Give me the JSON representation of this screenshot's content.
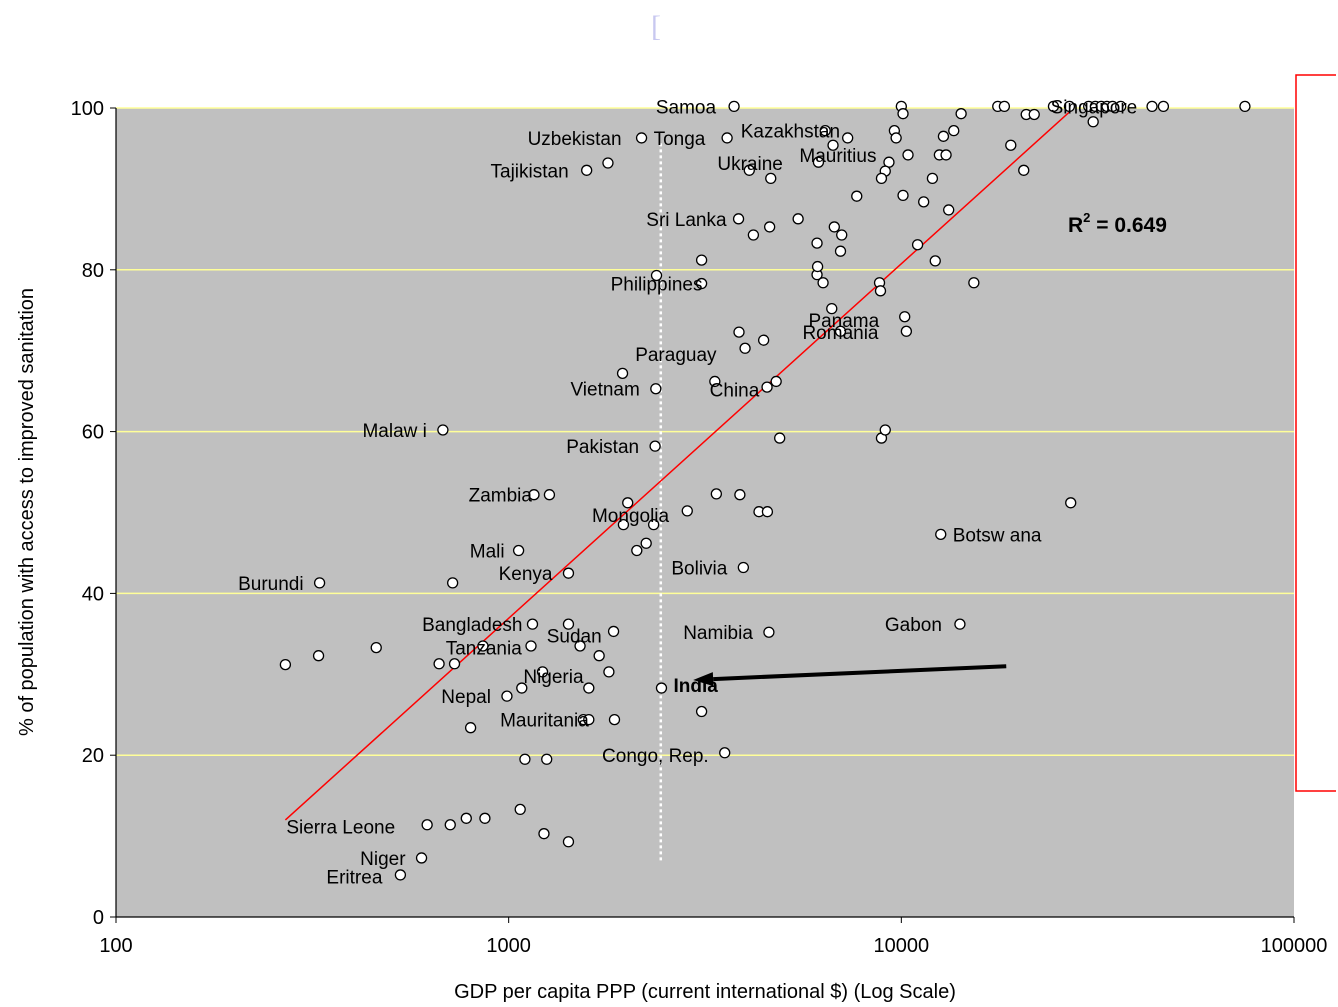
{
  "page": {
    "top_marker": "["
  },
  "chart_data": {
    "type": "scatter",
    "xscale": "log",
    "xlim": [
      100,
      100000
    ],
    "ylim": [
      0,
      100
    ],
    "xticks": [
      100,
      1000,
      10000,
      100000
    ],
    "xtick_labels": [
      "100",
      "1000",
      "10000",
      "100000"
    ],
    "yticks": [
      0,
      20,
      40,
      60,
      80,
      100
    ],
    "ytick_labels": [
      "0",
      "20",
      "40",
      "60",
      "80",
      "100"
    ],
    "xlabel": "GDP per capita PPP (current international $) (Log Scale)",
    "ylabel": "% of population with access to improved sanitation",
    "r2_label": "R",
    "r2_sup": "2",
    "r2_value": " = 0.649",
    "grid": "horizontal",
    "colors": {
      "plot_bg": "#c0c0c0",
      "gridline": "#ffff99",
      "trend": "#ff0000",
      "marker_fill": "#ffffff",
      "marker_stroke": "#000000",
      "annotation_box": "#ff0000",
      "arrow": "#000000",
      "reference_line": "#ffffff"
    },
    "reference_x": 2440,
    "reference_y_range": [
      7,
      96
    ],
    "trendline": {
      "x1": 270,
      "y1": 12,
      "x2": 27500,
      "y2": 100
    },
    "arrow": {
      "from": [
        18500,
        31
      ],
      "to": [
        2950,
        29.3
      ],
      "target_label": "India"
    },
    "points": [
      [
        270,
        31.2
      ],
      [
        328,
        32.3
      ],
      [
        460,
        33.3
      ],
      [
        665,
        31.3
      ],
      [
        728,
        31.3
      ],
      [
        860,
        33.5
      ],
      [
        330,
        41.3
      ],
      [
        720,
        41.3
      ],
      [
        1060,
        45.3
      ],
      [
        1420,
        42.5
      ],
      [
        680,
        60.2
      ],
      [
        1950,
        67.2
      ],
      [
        2370,
        65.3
      ],
      [
        3350,
        66.2
      ],
      [
        4550,
        65.5
      ],
      [
        4800,
        66.2
      ],
      [
        2360,
        58.2
      ],
      [
        4900,
        59.2
      ],
      [
        8900,
        59.2
      ],
      [
        9100,
        60.2
      ],
      [
        1160,
        52.2
      ],
      [
        1270,
        52.2
      ],
      [
        2010,
        51.2
      ],
      [
        2850,
        50.2
      ],
      [
        1960,
        48.5
      ],
      [
        2340,
        48.5
      ],
      [
        2120,
        45.3
      ],
      [
        2240,
        46.2
      ],
      [
        3380,
        52.3
      ],
      [
        3880,
        52.2
      ],
      [
        4340,
        50.1
      ],
      [
        4560,
        50.1
      ],
      [
        3960,
        43.2
      ],
      [
        12600,
        47.3
      ],
      [
        27000,
        51.2
      ],
      [
        1150,
        36.2
      ],
      [
        1420,
        36.2
      ],
      [
        1850,
        35.3
      ],
      [
        1520,
        33.5
      ],
      [
        1140,
        33.5
      ],
      [
        1220,
        30.3
      ],
      [
        1700,
        32.3
      ],
      [
        1800,
        30.3
      ],
      [
        1600,
        28.3
      ],
      [
        1080,
        28.3
      ],
      [
        990,
        27.3
      ],
      [
        800,
        23.4
      ],
      [
        1550,
        24.4
      ],
      [
        1600,
        24.4
      ],
      [
        1860,
        24.4
      ],
      [
        2450,
        28.3
      ],
      [
        3100,
        25.4
      ],
      [
        4600,
        35.2
      ],
      [
        14100,
        36.2
      ],
      [
        1100,
        19.5
      ],
      [
        1250,
        19.5
      ],
      [
        3550,
        20.3
      ],
      [
        1070,
        13.3
      ],
      [
        1230,
        10.3
      ],
      [
        1420,
        9.3
      ],
      [
        620,
        11.4
      ],
      [
        710,
        11.4
      ],
      [
        780,
        12.2
      ],
      [
        870,
        12.2
      ],
      [
        600,
        7.3
      ],
      [
        530,
        5.2
      ],
      [
        3750,
        100.2
      ],
      [
        2180,
        96.3
      ],
      [
        1790,
        93.2
      ],
      [
        1580,
        92.3
      ],
      [
        3600,
        96.3
      ],
      [
        6400,
        97.2
      ],
      [
        6700,
        95.4
      ],
      [
        6150,
        93.3
      ],
      [
        7300,
        96.3
      ],
      [
        9600,
        97.2
      ],
      [
        9700,
        96.3
      ],
      [
        4100,
        92.3
      ],
      [
        4650,
        91.3
      ],
      [
        9300,
        93.3
      ],
      [
        9100,
        92.2
      ],
      [
        8900,
        91.3
      ],
      [
        10400,
        94.2
      ],
      [
        10100,
        89.2
      ],
      [
        12500,
        94.2
      ],
      [
        13000,
        94.2
      ],
      [
        12800,
        96.5
      ],
      [
        13600,
        97.2
      ],
      [
        14200,
        99.3
      ],
      [
        12000,
        91.3
      ],
      [
        11400,
        88.4
      ],
      [
        13200,
        87.4
      ],
      [
        19000,
        95.4
      ],
      [
        20500,
        92.3
      ],
      [
        7700,
        89.1
      ],
      [
        10000,
        100.2
      ],
      [
        10100,
        99.3
      ],
      [
        17600,
        100.2
      ],
      [
        18300,
        100.2
      ],
      [
        20800,
        99.2
      ],
      [
        21800,
        99.2
      ],
      [
        24400,
        100.2
      ],
      [
        26800,
        100.2
      ],
      [
        30000,
        100.2
      ],
      [
        31200,
        100.2
      ],
      [
        32300,
        100.2
      ],
      [
        33400,
        100.2
      ],
      [
        34500,
        100.2
      ],
      [
        36200,
        100.2
      ],
      [
        43500,
        100.2
      ],
      [
        46500,
        100.2
      ],
      [
        75000,
        100.2
      ],
      [
        30800,
        98.3
      ],
      [
        3850,
        86.3
      ],
      [
        4200,
        84.3
      ],
      [
        4620,
        85.3
      ],
      [
        5460,
        86.3
      ],
      [
        6750,
        85.3
      ],
      [
        7050,
        84.3
      ],
      [
        6100,
        83.3
      ],
      [
        7000,
        82.3
      ],
      [
        6100,
        79.4
      ],
      [
        6120,
        80.4
      ],
      [
        6320,
        78.4
      ],
      [
        8800,
        78.4
      ],
      [
        8850,
        77.4
      ],
      [
        11000,
        83.1
      ],
      [
        12200,
        81.1
      ],
      [
        15300,
        78.4
      ],
      [
        3100,
        81.2
      ],
      [
        3100,
        78.3
      ],
      [
        2380,
        79.3
      ],
      [
        3860,
        72.3
      ],
      [
        4460,
        71.3
      ],
      [
        4000,
        70.3
      ],
      [
        6650,
        75.2
      ],
      [
        10200,
        74.2
      ],
      [
        10300,
        72.4
      ],
      [
        7000,
        72.4
      ]
    ],
    "labels": [
      {
        "text": "Samoa",
        "x": 3750,
        "y": 100.2,
        "anchor": "end",
        "dx": -18
      },
      {
        "text": "Uzbekistan",
        "x": 2180,
        "y": 96.3,
        "anchor": "end",
        "dx": -20
      },
      {
        "text": "Tonga",
        "x": 2180,
        "y": 96.3,
        "anchor": "start",
        "dx": 12
      },
      {
        "text": "Tajikistan",
        "x": 1580,
        "y": 92.3,
        "anchor": "end",
        "dx": -18
      },
      {
        "text": "Kazakhstan",
        "x": 3900,
        "y": 97.2,
        "anchor": "start",
        "dx": 0
      },
      {
        "text": "Mauritius",
        "x": 5500,
        "y": 94.2,
        "anchor": "start",
        "dx": 0
      },
      {
        "text": "Ukraine",
        "x": 3400,
        "y": 93.2,
        "anchor": "start",
        "dx": 0
      },
      {
        "text": "Singapore",
        "x": 24000,
        "y": 100.2,
        "anchor": "start",
        "dx": 0
      },
      {
        "text": "Sri Lanka",
        "x": 3850,
        "y": 86.3,
        "anchor": "end",
        "dx": -12
      },
      {
        "text": "Philippines",
        "x": 2380,
        "y": 78.3,
        "anchor": "middle",
        "dx": 0
      },
      {
        "text": "Panama",
        "x": 5800,
        "y": 73.8,
        "anchor": "start",
        "dx": 0
      },
      {
        "text": "Romania",
        "x": 5600,
        "y": 72.3,
        "anchor": "start",
        "dx": 0
      },
      {
        "text": "Paraguay",
        "x": 2100,
        "y": 69.6,
        "anchor": "start",
        "dx": 0
      },
      {
        "text": "Vietnam",
        "x": 2370,
        "y": 65.3,
        "anchor": "end",
        "dx": -16
      },
      {
        "text": "China",
        "x": 3250,
        "y": 65.2,
        "anchor": "start",
        "dx": 0
      },
      {
        "text": "Malaw i",
        "x": 680,
        "y": 60.2,
        "anchor": "end",
        "dx": -16
      },
      {
        "text": "Pakistan",
        "x": 2360,
        "y": 58.2,
        "anchor": "end",
        "dx": -16
      },
      {
        "text": "Zambia",
        "x": 1160,
        "y": 52.2,
        "anchor": "end",
        "dx": -2
      },
      {
        "text": "Mongolia",
        "x": 1630,
        "y": 49.7,
        "anchor": "start",
        "dx": 0
      },
      {
        "text": "Botsw ana",
        "x": 12600,
        "y": 47.3,
        "anchor": "start",
        "dx": 12
      },
      {
        "text": "Mali",
        "x": 1060,
        "y": 45.3,
        "anchor": "end",
        "dx": -14
      },
      {
        "text": "Kenya",
        "x": 1420,
        "y": 42.5,
        "anchor": "end",
        "dx": -16
      },
      {
        "text": "Bolivia",
        "x": 3960,
        "y": 43.2,
        "anchor": "end",
        "dx": -16
      },
      {
        "text": "Burundi",
        "x": 330,
        "y": 41.3,
        "anchor": "end",
        "dx": -16
      },
      {
        "text": "Bangladesh",
        "x": 1150,
        "y": 36.2,
        "anchor": "end",
        "dx": -10
      },
      {
        "text": "Sudan",
        "x": 1250,
        "y": 34.8,
        "anchor": "start",
        "dx": 0
      },
      {
        "text": "Namibia",
        "x": 4600,
        "y": 35.2,
        "anchor": "end",
        "dx": -16
      },
      {
        "text": "Gabon",
        "x": 14100,
        "y": 36.2,
        "anchor": "end",
        "dx": -18
      },
      {
        "text": "Tanzania",
        "x": 1080,
        "y": 33.3,
        "anchor": "end",
        "dx": 0
      },
      {
        "text": "Nigeria",
        "x": 1090,
        "y": 29.8,
        "anchor": "start",
        "dx": 0
      },
      {
        "text": "India",
        "x": 2450,
        "y": 28.7,
        "anchor": "start",
        "dx": 12,
        "bold": true
      },
      {
        "text": "Nepal",
        "x": 990,
        "y": 27.3,
        "anchor": "end",
        "dx": -16
      },
      {
        "text": "Mauritania",
        "x": 1600,
        "y": 24.4,
        "anchor": "end",
        "dx": 0
      },
      {
        "text": "Congo, Rep.",
        "x": 3550,
        "y": 20.0,
        "anchor": "end",
        "dx": -16
      },
      {
        "text": "Sierra Leone",
        "x": 620,
        "y": 11.2,
        "anchor": "end",
        "dx": -32
      },
      {
        "text": "Niger",
        "x": 600,
        "y": 7.3,
        "anchor": "end",
        "dx": -16
      },
      {
        "text": "Eritrea",
        "x": 530,
        "y": 5.0,
        "anchor": "end",
        "dx": -18
      }
    ]
  }
}
